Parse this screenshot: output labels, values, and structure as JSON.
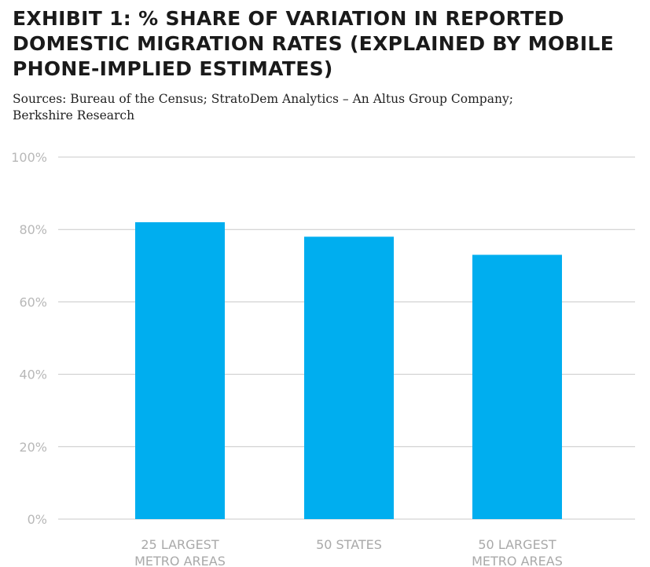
{
  "header": {
    "title_lines": [
      "EXHIBIT 1: % SHARE OF VARIATION IN REPORTED",
      "DOMESTIC MIGRATION RATES (EXPLAINED BY MOBILE",
      "PHONE-IMPLIED ESTIMATES)"
    ],
    "sources_lines": [
      "Sources: Bureau of the Census; StratoDem Analytics – An Altus Group Company;",
      "Berkshire Research"
    ]
  },
  "chart_data": {
    "type": "bar",
    "title": "EXHIBIT 1: % SHARE OF VARIATION IN REPORTED DOMESTIC MIGRATION RATES (EXPLAINED BY MOBILE PHONE-IMPLIED ESTIMATES)",
    "categories": [
      [
        "25 LARGEST",
        "METRO AREAS"
      ],
      [
        "50 STATES"
      ],
      [
        "50 LARGEST",
        "METRO AREAS"
      ]
    ],
    "values": [
      82,
      78,
      73
    ],
    "unit": "%",
    "ylim": [
      0,
      100
    ],
    "yticks": [
      0,
      20,
      40,
      60,
      80,
      100
    ],
    "ytick_labels": [
      "0%",
      "20%",
      "40%",
      "60%",
      "80%",
      "100%"
    ],
    "xlabel": "",
    "ylabel": "",
    "grid": true,
    "legend": "none",
    "colors": {
      "bar": "#00AEEF",
      "grid": "#c8c8c8",
      "tick_label": "#b8b8b8",
      "category_label": "#a9a9a9"
    }
  }
}
